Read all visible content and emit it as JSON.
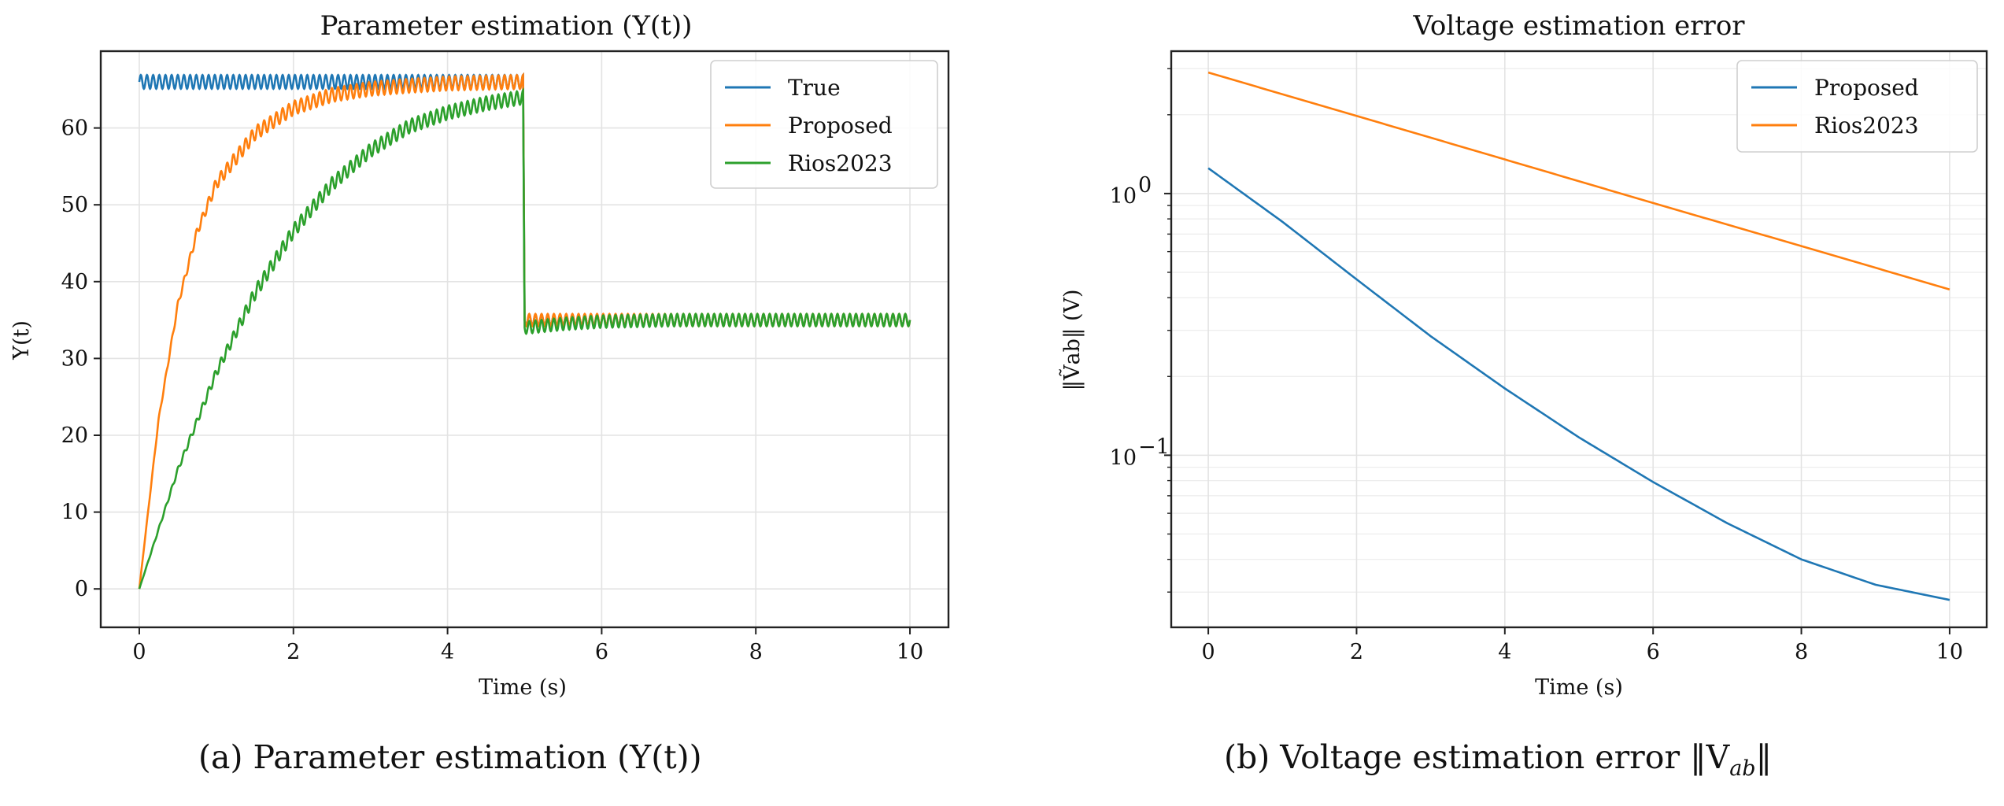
{
  "colors": {
    "blue": "#1f77b4",
    "orange": "#ff7f0e",
    "green": "#2ca02c"
  },
  "chart_data": [
    {
      "type": "line",
      "title": "Parameter estimation (Y(t))",
      "xlabel": "Time (s)",
      "ylabel": "Υ(t)",
      "xlim": [
        -0.5,
        10.5
      ],
      "ylim": [
        -5,
        70
      ],
      "xticks": [
        "0",
        "2",
        "4",
        "6",
        "8",
        "10"
      ],
      "yticks": [
        "0",
        "10",
        "20",
        "30",
        "40",
        "50",
        "60"
      ],
      "grid": true,
      "legend_position": "top-right",
      "series": [
        {
          "name": "True",
          "color": "#1f77b4",
          "x": [
            0,
            4.98,
            5,
            10
          ],
          "y": [
            66,
            66,
            35,
            35
          ],
          "ripple": "oscillates about ±1 around the level"
        },
        {
          "name": "Proposed",
          "color": "#ff7f0e",
          "x": [
            0,
            0.25,
            0.5,
            0.75,
            1,
            1.5,
            2,
            2.5,
            3,
            3.5,
            4,
            4.5,
            4.98,
            5,
            6,
            8,
            10
          ],
          "y": [
            0,
            22,
            37,
            46.5,
            52.8,
            59.3,
            62.6,
            64.3,
            65.1,
            65.5,
            65.8,
            65.9,
            66,
            35,
            35,
            35,
            35
          ]
        },
        {
          "name": "Rios2023",
          "color": "#2ca02c",
          "x": [
            0,
            0.5,
            1,
            1.5,
            2,
            2.5,
            3,
            3.5,
            4,
            4.5,
            4.98,
            5,
            5.5,
            6,
            7,
            8,
            9,
            10
          ],
          "y": [
            0,
            15.5,
            28.2,
            38.5,
            46.6,
            52.7,
            57.1,
            60.2,
            62,
            63.2,
            64,
            34,
            34.5,
            34.8,
            35,
            35,
            35,
            35
          ]
        }
      ]
    },
    {
      "type": "line",
      "title": "Voltage estimation error",
      "xlabel": "Time (s)",
      "ylabel": "‖Ṽab‖ (V)",
      "yscale": "log",
      "xlim": [
        -0.5,
        10.5
      ],
      "ylim": [
        0.022,
        3.5
      ],
      "xticks": [
        "0",
        "2",
        "4",
        "6",
        "8",
        "10"
      ],
      "yticks": [
        {
          "value": 1,
          "base": "10",
          "exp": "0"
        },
        {
          "value": 0.1,
          "base": "10",
          "exp": "−1"
        }
      ],
      "grid": true,
      "legend_position": "top-right",
      "series": [
        {
          "name": "Proposed",
          "color": "#1f77b4",
          "x": [
            0,
            1,
            2,
            3,
            4,
            5,
            6,
            7,
            8,
            9,
            10
          ],
          "y": [
            1.25,
            0.78,
            0.47,
            0.285,
            0.18,
            0.117,
            0.079,
            0.055,
            0.04,
            0.032,
            0.028
          ]
        },
        {
          "name": "Rios2023",
          "color": "#ff7f0e",
          "x": [
            0,
            2,
            4,
            6,
            8,
            10
          ],
          "y": [
            2.9,
            1.98,
            1.35,
            0.92,
            0.63,
            0.43
          ]
        }
      ]
    }
  ],
  "captions": {
    "a": "(a) Parameter estimation (Υ(t))",
    "b_prefix": "(b) Voltage estimation error ‖V",
    "b_sub": "ab",
    "b_suffix": "‖"
  }
}
